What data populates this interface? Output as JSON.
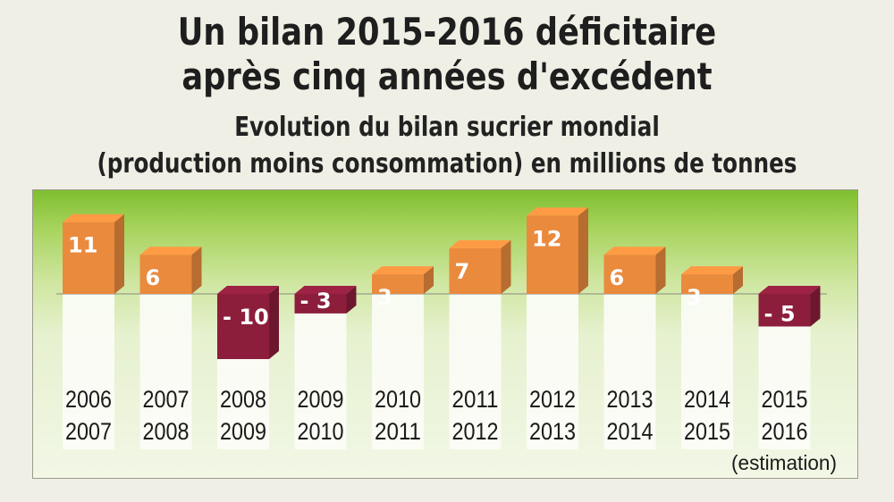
{
  "header": {
    "title_line1": "Un bilan 2015-2016 déficitaire",
    "title_line2": "après cinq années d'excédent",
    "subtitle_line1": "Evolution du bilan sucrier mondial",
    "subtitle_line2": "(production moins consommation) en millions de tonnes"
  },
  "colors": {
    "positive": "#ea8a3d",
    "negative": "#8c1e3c"
  },
  "chart_data": {
    "type": "bar",
    "title": "Evolution du bilan sucrier mondial",
    "categories": [
      [
        "2006",
        "2007"
      ],
      [
        "2007",
        "2008"
      ],
      [
        "2008",
        "2009"
      ],
      [
        "2009",
        "2010"
      ],
      [
        "2010",
        "2011"
      ],
      [
        "2011",
        "2012"
      ],
      [
        "2012",
        "2013"
      ],
      [
        "2013",
        "2014"
      ],
      [
        "2014",
        "2015"
      ],
      [
        "2015",
        "2016"
      ]
    ],
    "values": [
      11,
      6,
      -10,
      -3,
      3,
      7,
      12,
      6,
      3,
      -5
    ],
    "value_labels": [
      "11",
      "6",
      "- 10",
      "- 3",
      "3",
      "7",
      "12",
      "6",
      "3",
      "- 5"
    ],
    "annotation": "(estimation)",
    "ylabel": "millions de tonnes",
    "grid": false
  }
}
